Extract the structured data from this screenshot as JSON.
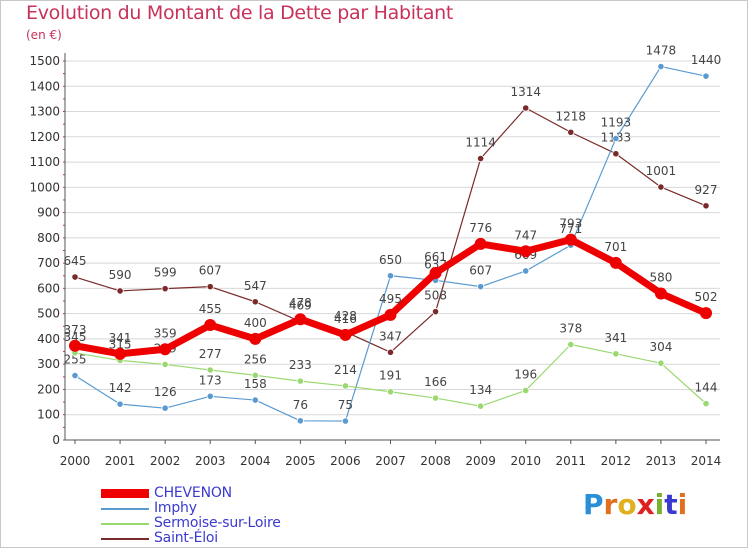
{
  "title": "Evolution du Montant de la Dette par Habitant",
  "unit": "(en €)",
  "logo": {
    "text": "Proxiti",
    "letters": [
      "P",
      "r",
      "o",
      "x",
      "i",
      "t",
      "i"
    ],
    "colors": [
      "#2a8fd8",
      "#e07020",
      "#e0b020",
      "#e02020",
      "#7ab030",
      "#3a3ad0",
      "#e07020"
    ]
  },
  "chart_data": {
    "type": "line",
    "x": [
      "2000",
      "2001",
      "2002",
      "2003",
      "2004",
      "2005",
      "2006",
      "2007",
      "2008",
      "2009",
      "2010",
      "2011",
      "2012",
      "2013",
      "2014"
    ],
    "ylim": [
      0,
      1500
    ],
    "yticks": [
      0,
      100,
      200,
      300,
      400,
      500,
      600,
      700,
      800,
      900,
      1000,
      1100,
      1200,
      1300,
      1400,
      1500
    ],
    "grid": true,
    "legend_position": "bottom-left",
    "series": [
      {
        "name": "Saint-Éloi",
        "color": "#7a2a2a",
        "width": 1.2,
        "values": [
          645,
          590,
          599,
          607,
          547,
          469,
          428,
          347,
          508,
          1114,
          1314,
          1218,
          1133,
          1001,
          927
        ],
        "labels": [
          "645",
          "590",
          "599",
          "607",
          "547",
          "469",
          "428",
          "347",
          "508",
          "1114",
          "1314",
          "1218",
          "1133",
          "1001",
          "927"
        ]
      },
      {
        "name": "Imphy",
        "color": "#5a9ad0",
        "width": 1.2,
        "values": [
          255,
          142,
          126,
          173,
          158,
          76,
          75,
          650,
          632,
          607,
          669,
          771,
          1193,
          1478,
          1440
        ],
        "labels": [
          "255",
          "142",
          "126",
          "173",
          "158",
          "76",
          "75",
          "650",
          "632",
          "607",
          "669",
          "771",
          "1193",
          "1478",
          "1440"
        ]
      },
      {
        "name": "Sermoise-sur-Loire",
        "color": "#9ad870",
        "width": 1.2,
        "values": [
          345,
          315,
          299,
          277,
          256,
          233,
          214,
          191,
          166,
          134,
          196,
          378,
          341,
          304,
          144
        ],
        "labels": [
          "345",
          "315",
          "299",
          "277",
          "256",
          "233",
          "214",
          "191",
          "166",
          "134",
          "196",
          "378",
          "341",
          "304",
          "144"
        ]
      },
      {
        "name": "CHEVENON",
        "color": "#ee0000",
        "width": 7,
        "values": [
          373,
          341,
          359,
          455,
          400,
          478,
          416,
          495,
          661,
          776,
          747,
          793,
          701,
          580,
          502
        ],
        "labels": [
          "373",
          "341",
          "359",
          "455",
          "400",
          "478",
          "416",
          "495",
          "661",
          "776",
          "747",
          "793",
          "701",
          "580",
          "502"
        ]
      }
    ],
    "legend_order": [
      "CHEVENON",
      "Imphy",
      "Sermoise-sur-Loire",
      "Saint-Éloi"
    ]
  }
}
